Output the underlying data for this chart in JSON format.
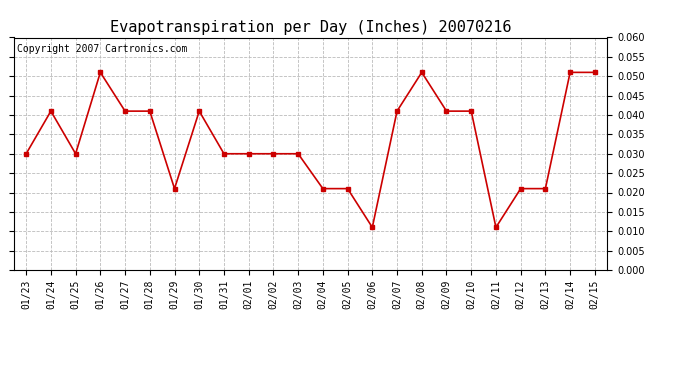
{
  "title": "Evapotranspiration per Day (Inches) 20070216",
  "copyright_text": "Copyright 2007 Cartronics.com",
  "labels": [
    "01/23",
    "01/24",
    "01/25",
    "01/26",
    "01/27",
    "01/28",
    "01/29",
    "01/30",
    "01/31",
    "02/01",
    "02/02",
    "02/03",
    "02/04",
    "02/05",
    "02/06",
    "02/07",
    "02/08",
    "02/09",
    "02/10",
    "02/11",
    "02/12",
    "02/13",
    "02/14",
    "02/15"
  ],
  "values": [
    0.03,
    0.041,
    0.03,
    0.051,
    0.041,
    0.041,
    0.021,
    0.041,
    0.03,
    0.03,
    0.03,
    0.03,
    0.021,
    0.021,
    0.011,
    0.041,
    0.051,
    0.041,
    0.041,
    0.011,
    0.021,
    0.021,
    0.051,
    0.051
  ],
  "ylim": [
    0.0,
    0.06
  ],
  "yticks": [
    0.0,
    0.005,
    0.01,
    0.015,
    0.02,
    0.025,
    0.03,
    0.035,
    0.04,
    0.045,
    0.05,
    0.055,
    0.06
  ],
  "line_color": "#cc0000",
  "marker": "s",
  "marker_size": 3,
  "bg_color": "#ffffff",
  "grid_color": "#bbbbbb",
  "title_fontsize": 11,
  "copyright_fontsize": 7,
  "tick_fontsize": 7,
  "figwidth": 6.9,
  "figheight": 3.75,
  "dpi": 100
}
